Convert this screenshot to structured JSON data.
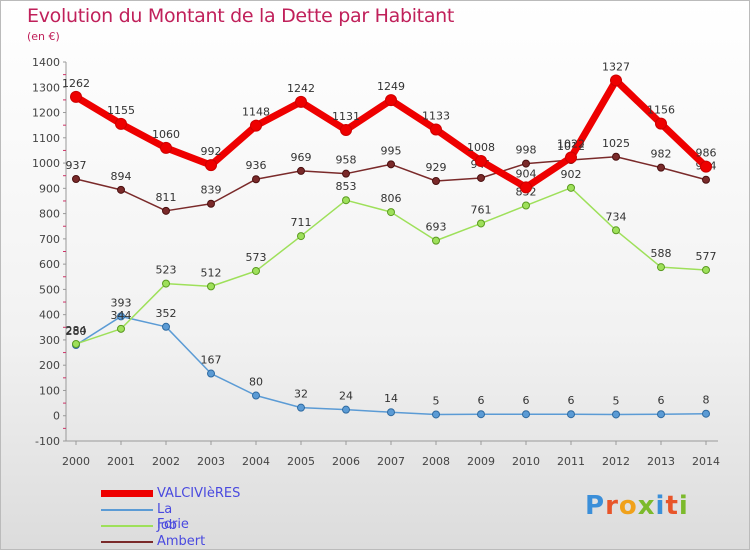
{
  "header": {
    "title": "Evolution du Montant de la Dette par Habitant",
    "subtitle": "(en €)"
  },
  "logo": {
    "text": "Proxiti",
    "colors": [
      "#3b8fd9",
      "#e8552a",
      "#f0a11a",
      "#7cba2c",
      "#3b8fd9",
      "#e8552a",
      "#7cba2c"
    ]
  },
  "chart_data": {
    "type": "line",
    "title": "Evolution du Montant de la Dette par Habitant",
    "subtitle": "(en €)",
    "x": [
      2000,
      2001,
      2002,
      2003,
      2004,
      2005,
      2006,
      2007,
      2008,
      2009,
      2010,
      2011,
      2012,
      2013,
      2014
    ],
    "ylim": [
      -100,
      1400
    ],
    "yticks": [
      -100,
      0,
      100,
      200,
      300,
      400,
      500,
      600,
      700,
      800,
      900,
      1000,
      1100,
      1200,
      1300,
      1400
    ],
    "grid": false,
    "legend_position": "bottom-left",
    "series": [
      {
        "name": "VALCIVIèRES",
        "color": "#ee0000",
        "values": [
          1262,
          1155,
          1060,
          992,
          1148,
          1242,
          1131,
          1249,
          1133,
          1008,
          904,
          1022,
          1327,
          1156,
          986
        ]
      },
      {
        "name": "La Forie",
        "color": "#5b9bd5",
        "values": [
          280,
          393,
          352,
          167,
          80,
          32,
          24,
          14,
          5,
          6,
          6,
          6,
          5,
          6,
          8
        ]
      },
      {
        "name": "Job",
        "color": "#9ee05a",
        "values": [
          284,
          344,
          523,
          512,
          573,
          711,
          853,
          806,
          693,
          761,
          832,
          902,
          734,
          588,
          577
        ]
      },
      {
        "name": "Ambert",
        "color": "#7a2a2a",
        "values": [
          937,
          894,
          811,
          839,
          936,
          969,
          958,
          995,
          929,
          941,
          998,
          1012,
          1025,
          982,
          934
        ]
      }
    ]
  }
}
